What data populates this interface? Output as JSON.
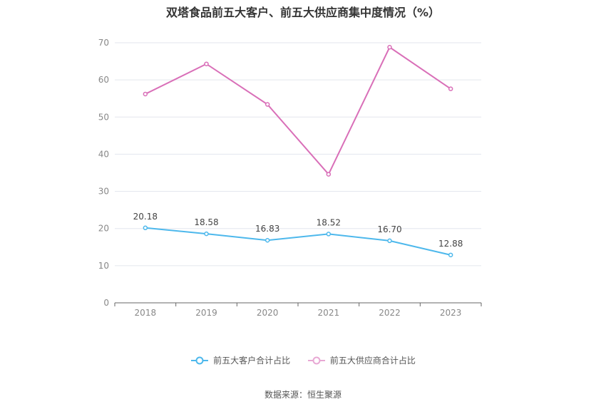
{
  "chart_data": {
    "type": "line",
    "title": "双塔食品前五大客户、前五大供应商集中度情况（%）",
    "categories": [
      "2018",
      "2019",
      "2020",
      "2021",
      "2022",
      "2023"
    ],
    "ylim": [
      0,
      70
    ],
    "yticks": [
      0,
      10,
      20,
      30,
      40,
      50,
      60,
      70
    ],
    "grid": true,
    "legend_position": "bottom",
    "series": [
      {
        "name": "前五大客户合计占比",
        "color": "#4db8ec",
        "values": [
          20.18,
          18.58,
          16.83,
          18.52,
          16.7,
          12.88
        ],
        "labels": [
          "20.18",
          "18.58",
          "16.83",
          "18.52",
          "16.70",
          "12.88"
        ],
        "show_labels": true
      },
      {
        "name": "前五大供应商合计占比",
        "color": "#d96fb8",
        "values": [
          56.2,
          64.3,
          53.4,
          34.6,
          68.8,
          57.6
        ],
        "show_labels": false
      }
    ]
  },
  "source": "数据来源：恒生聚源"
}
